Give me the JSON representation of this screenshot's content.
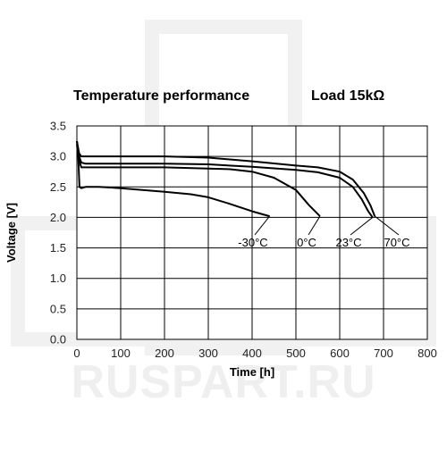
{
  "chart_data": {
    "type": "line",
    "title": "Temperature performance",
    "subtitle": "Load 15kΩ",
    "xlabel": "Time [h]",
    "ylabel": "Voltage [V]",
    "xlim": [
      0,
      800
    ],
    "ylim": [
      0,
      3.5
    ],
    "x_ticks": [
      0,
      100,
      200,
      300,
      400,
      500,
      600,
      700,
      800
    ],
    "y_ticks": [
      0.0,
      0.5,
      1.0,
      1.5,
      2.0,
      2.5,
      3.0,
      3.5
    ],
    "x_tick_labels": [
      "0",
      "100",
      "200",
      "300",
      "400",
      "500",
      "600",
      "700",
      "800"
    ],
    "y_tick_labels": [
      "0.0",
      "0.5",
      "1.0",
      "1.5",
      "2.0",
      "2.5",
      "3.0",
      "3.5"
    ],
    "grid": true,
    "legend": "none",
    "series": [
      {
        "name": "-30°C",
        "x": [
          0,
          3,
          6,
          10,
          20,
          50,
          100,
          200,
          260,
          300,
          350,
          400,
          440
        ],
        "y": [
          3.2,
          3.0,
          2.5,
          2.48,
          2.5,
          2.5,
          2.48,
          2.42,
          2.38,
          2.33,
          2.22,
          2.1,
          2.02
        ]
      },
      {
        "name": "0°C",
        "x": [
          0,
          5,
          10,
          20,
          50,
          100,
          200,
          300,
          350,
          400,
          450,
          500,
          530,
          555
        ],
        "y": [
          3.25,
          2.95,
          2.82,
          2.82,
          2.82,
          2.82,
          2.82,
          2.8,
          2.79,
          2.75,
          2.65,
          2.45,
          2.2,
          2.02
        ]
      },
      {
        "name": "23°C",
        "x": [
          0,
          5,
          10,
          20,
          50,
          100,
          200,
          300,
          400,
          500,
          550,
          600,
          630,
          650,
          665,
          675
        ],
        "y": [
          3.25,
          3.0,
          2.9,
          2.88,
          2.88,
          2.88,
          2.88,
          2.87,
          2.83,
          2.78,
          2.74,
          2.65,
          2.5,
          2.3,
          2.1,
          2.0
        ]
      },
      {
        "name": "70°C",
        "x": [
          0,
          5,
          10,
          20,
          50,
          100,
          200,
          300,
          400,
          500,
          550,
          600,
          630,
          655,
          670,
          680
        ],
        "y": [
          3.25,
          3.05,
          3.0,
          3.0,
          3.0,
          3.0,
          3.0,
          2.98,
          2.92,
          2.85,
          2.82,
          2.75,
          2.62,
          2.4,
          2.2,
          2.02
        ]
      }
    ]
  }
}
